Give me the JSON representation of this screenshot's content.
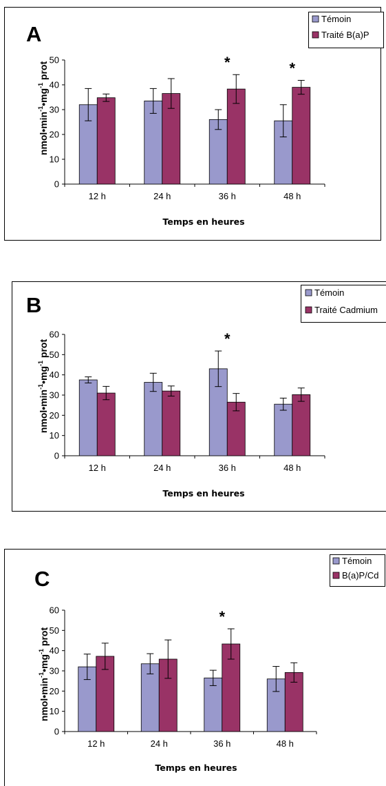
{
  "colors": {
    "temoin": "#9999cc",
    "treated": "#993366"
  },
  "chart_data": [
    {
      "type": "bar",
      "panel_label": "A",
      "categories": [
        "12 h",
        "24 h",
        "36 h",
        "48 h"
      ],
      "xlabel": "Temps en heures",
      "ylabel": {
        "base": "nmol",
        "dot1": "•",
        "min": "min",
        "exp1": "-1",
        "dot2": "•",
        "mg": "mg",
        "exp2": "-1",
        "tail": " prot"
      },
      "ylim": [
        0,
        50
      ],
      "yticks": [
        "0",
        "10",
        "20",
        "30",
        "40",
        "50"
      ],
      "legend_position": "top-right",
      "series": [
        {
          "name": "Témoin",
          "values": [
            32,
            33.5,
            26,
            25.5
          ],
          "errors": [
            6.5,
            5,
            4,
            6.5
          ]
        },
        {
          "name": "Traité B(a)P",
          "values": [
            34.8,
            36.5,
            38.3,
            39
          ],
          "errors": [
            1.5,
            6,
            5.8,
            2.8
          ]
        }
      ],
      "significance": [
        {
          "category_index": 2,
          "text": "*"
        },
        {
          "category_index": 3,
          "text": "*"
        }
      ]
    },
    {
      "type": "bar",
      "panel_label": "B",
      "categories": [
        "12 h",
        "24 h",
        "36 h",
        "48 h"
      ],
      "xlabel": "Temps en heures",
      "ylabel": {
        "base": "nmol",
        "dot1": "•",
        "min": "min",
        "exp1": "-1",
        "dot2": "•",
        "mg": "mg",
        "exp2": "-1",
        "tail": " prot"
      },
      "ylim": [
        0,
        60
      ],
      "yticks": [
        "0",
        "10",
        "20",
        "30",
        "40",
        "50",
        "60"
      ],
      "legend_position": "top-right",
      "series": [
        {
          "name": "Témoin",
          "values": [
            37.5,
            36.3,
            43,
            25.5
          ],
          "errors": [
            1.5,
            4.5,
            8.8,
            3
          ]
        },
        {
          "name": "Traité Cadmium",
          "values": [
            31,
            32,
            26.5,
            30.2
          ],
          "errors": [
            3.3,
            2.5,
            4.3,
            3.3
          ]
        }
      ],
      "significance": [
        {
          "category_index": 2,
          "text": "*"
        }
      ]
    },
    {
      "type": "bar",
      "panel_label": "C",
      "categories": [
        "12 h",
        "24 h",
        "36 h",
        "48 h"
      ],
      "xlabel": "Temps en heures",
      "ylabel": {
        "base": "nmol",
        "dot1": "•",
        "min": "min",
        "exp1": "-1",
        "dot2": "•",
        "mg": "mg",
        "exp2": "-1",
        "tail": " prot"
      },
      "ylim": [
        0,
        60
      ],
      "yticks": [
        "0",
        "10",
        "20",
        "30",
        "40",
        "50",
        "60"
      ],
      "legend_position": "top-right",
      "series": [
        {
          "name": "Témoin",
          "values": [
            32,
            33.5,
            26.5,
            26
          ],
          "errors": [
            6.3,
            5,
            3.8,
            6.2
          ]
        },
        {
          "name": "B(a)P/Cd",
          "values": [
            37.2,
            35.8,
            43.3,
            29.2
          ],
          "errors": [
            6.5,
            9.5,
            7.5,
            4.8
          ]
        }
      ],
      "significance": [
        {
          "category_index": 2,
          "text": "*"
        }
      ]
    }
  ]
}
